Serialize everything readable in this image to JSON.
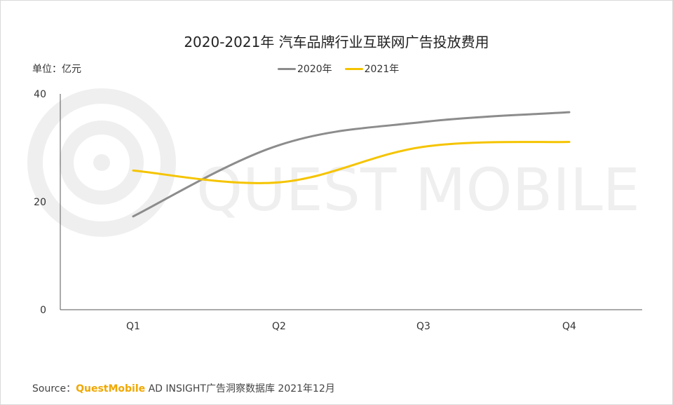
{
  "chart_data": {
    "type": "line",
    "title": "2020-2021年 汽车品牌行业互联网广告投放费用",
    "unit_label": "单位：亿元",
    "categories": [
      "Q1",
      "Q2",
      "Q3",
      "Q4"
    ],
    "series": [
      {
        "name": "2020年",
        "values": [
          17.3,
          30.5,
          34.8,
          36.6
        ],
        "color": "#8c8c8c"
      },
      {
        "name": "2021年",
        "values": [
          25.8,
          23.6,
          30.2,
          31.1
        ],
        "color": "#f5c400"
      }
    ],
    "yticks": [
      0,
      20,
      40
    ],
    "ylim": [
      0,
      40
    ],
    "grid": false,
    "legend_position": "top-center"
  },
  "source": {
    "prefix": "Source：",
    "brand": "QuestMobile",
    "text": " AD INSIGHT广告洞察数据库 2021年12月"
  },
  "watermark": "QUEST MOBILE"
}
